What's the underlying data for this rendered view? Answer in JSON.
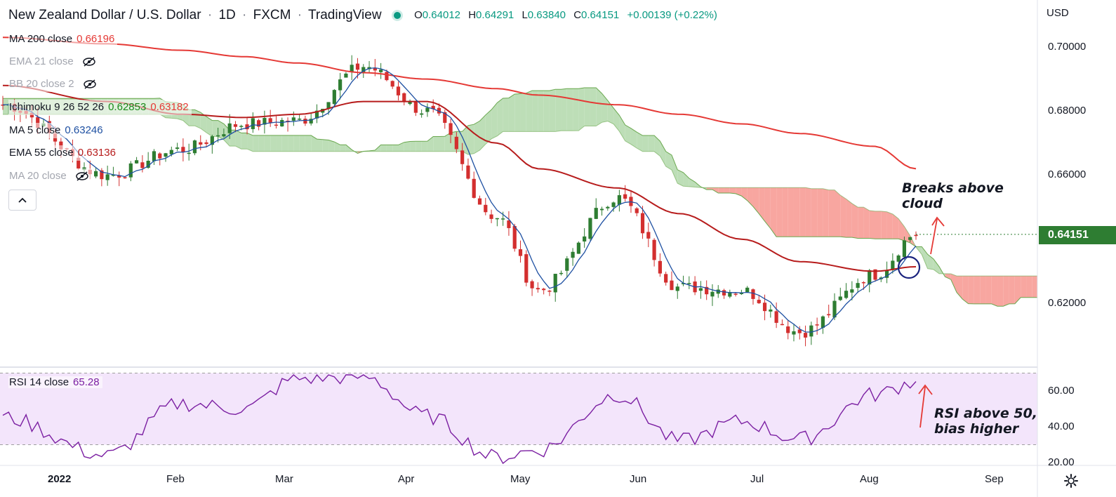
{
  "header": {
    "title_parts": [
      "New Zealand Dollar / U.S. Dollar",
      "1D",
      "FXCM",
      "TradingView"
    ],
    "separator": "·",
    "ohlc": {
      "open_label": "O",
      "open": "0.64012",
      "high_label": "H",
      "high": "0.64291",
      "low_label": "L",
      "low": "0.63840",
      "close_label": "C",
      "close": "0.64151",
      "change": "+0.00139 (+0.22%)"
    }
  },
  "indicators": [
    {
      "label": "MA 200 close",
      "value": "0.66196",
      "color": "#e53935",
      "hidden": false
    },
    {
      "label": "EMA 21 close",
      "value": "",
      "hidden": true
    },
    {
      "label": "BB 20 close 2",
      "value": "",
      "hidden": true
    },
    {
      "label": "Ichimoku 9 26 52 26",
      "value": "0.62853",
      "value2": "0.63182",
      "color": "#1b8a1b",
      "color2": "#e53935",
      "hidden": false
    },
    {
      "label": "MA 5 close",
      "value": "0.63246",
      "color": "#1e50a2",
      "hidden": false
    },
    {
      "label": "EMA 55 close",
      "value": "0.63136",
      "color": "#b71c1c",
      "hidden": false
    },
    {
      "label": "MA 20 close",
      "value": "",
      "hidden": true
    }
  ],
  "icons": {
    "status": "live-status-dot",
    "hidden": "eye-crossed-icon",
    "collapse": "chevron-up-icon",
    "settings": "gear-icon"
  },
  "price_axis": {
    "currency": "USD",
    "ticks": [
      "0.70000",
      "0.68000",
      "0.66000",
      "0.62000"
    ],
    "last_price": "0.64151"
  },
  "rsi_axis": {
    "ticks": [
      "60.00",
      "40.00",
      "20.00"
    ]
  },
  "time_axis": {
    "labels": [
      "2022",
      "Feb",
      "Mar",
      "Apr",
      "May",
      "Jun",
      "Jul",
      "Aug",
      "Sep"
    ]
  },
  "rsi": {
    "label": "RSI 14 close",
    "value": "65.28"
  },
  "annotations": {
    "cloud_line1": "Breaks above",
    "cloud_line2": "cloud",
    "rsi_line1": "RSI above 50,",
    "rsi_line2": "bias higher"
  },
  "colors": {
    "up": "#2e7d32",
    "down": "#d32f2f",
    "cloud_bear": "#f8a19b",
    "cloud_bull": "#b9dcb3",
    "ma200": "#e53935",
    "ema55": "#b71c1c",
    "ma5": "#1e50a2",
    "rsi_line": "#7b1fa2",
    "rsi_band": "#f3e5fb",
    "last_price": "#2e7d32"
  },
  "chart_data": [
    {
      "type": "line",
      "title": "New Zealand Dollar / U.S. Dollar · 1D · FXCM",
      "x": [
        "2022-01-03",
        "2022-01-28",
        "2022-02-15",
        "2022-03-02",
        "2022-03-15",
        "2022-03-31",
        "2022-04-15",
        "2022-05-02",
        "2022-05-12",
        "2022-05-31",
        "2022-06-15",
        "2022-06-30",
        "2022-07-14",
        "2022-08-01",
        "2022-08-11"
      ],
      "series": [
        {
          "name": "Close",
          "values": [
            0.682,
            0.66,
            0.668,
            0.676,
            0.677,
            0.694,
            0.68,
            0.647,
            0.624,
            0.653,
            0.625,
            0.624,
            0.611,
            0.629,
            0.6415
          ]
        },
        {
          "name": "MA 200 close",
          "values": [
            0.703,
            0.701,
            0.699,
            0.697,
            0.695,
            0.692,
            0.69,
            0.687,
            0.685,
            0.682,
            0.679,
            0.676,
            0.673,
            0.669,
            0.662
          ]
        },
        {
          "name": "EMA 55 close",
          "values": [
            0.688,
            0.683,
            0.679,
            0.678,
            0.679,
            0.683,
            0.683,
            0.67,
            0.662,
            0.656,
            0.648,
            0.64,
            0.633,
            0.63,
            0.6314
          ]
        }
      ],
      "ylim": [
        0.605,
        0.705
      ],
      "grid": false
    },
    {
      "type": "line",
      "title": "RSI 14 close",
      "x": [
        "2022-01-03",
        "2022-01-28",
        "2022-02-15",
        "2022-03-02",
        "2022-03-15",
        "2022-03-31",
        "2022-04-15",
        "2022-05-02",
        "2022-05-12",
        "2022-05-31",
        "2022-06-15",
        "2022-06-30",
        "2022-07-14",
        "2022-08-01",
        "2022-08-11"
      ],
      "series": [
        {
          "name": "RSI 14 close",
          "values": [
            45,
            24,
            53,
            50,
            67,
            68,
            46,
            23,
            27,
            58,
            32,
            43,
            33,
            58,
            65.28
          ]
        }
      ],
      "ylim": [
        17,
        70
      ],
      "bands": [
        30,
        70
      ]
    }
  ]
}
